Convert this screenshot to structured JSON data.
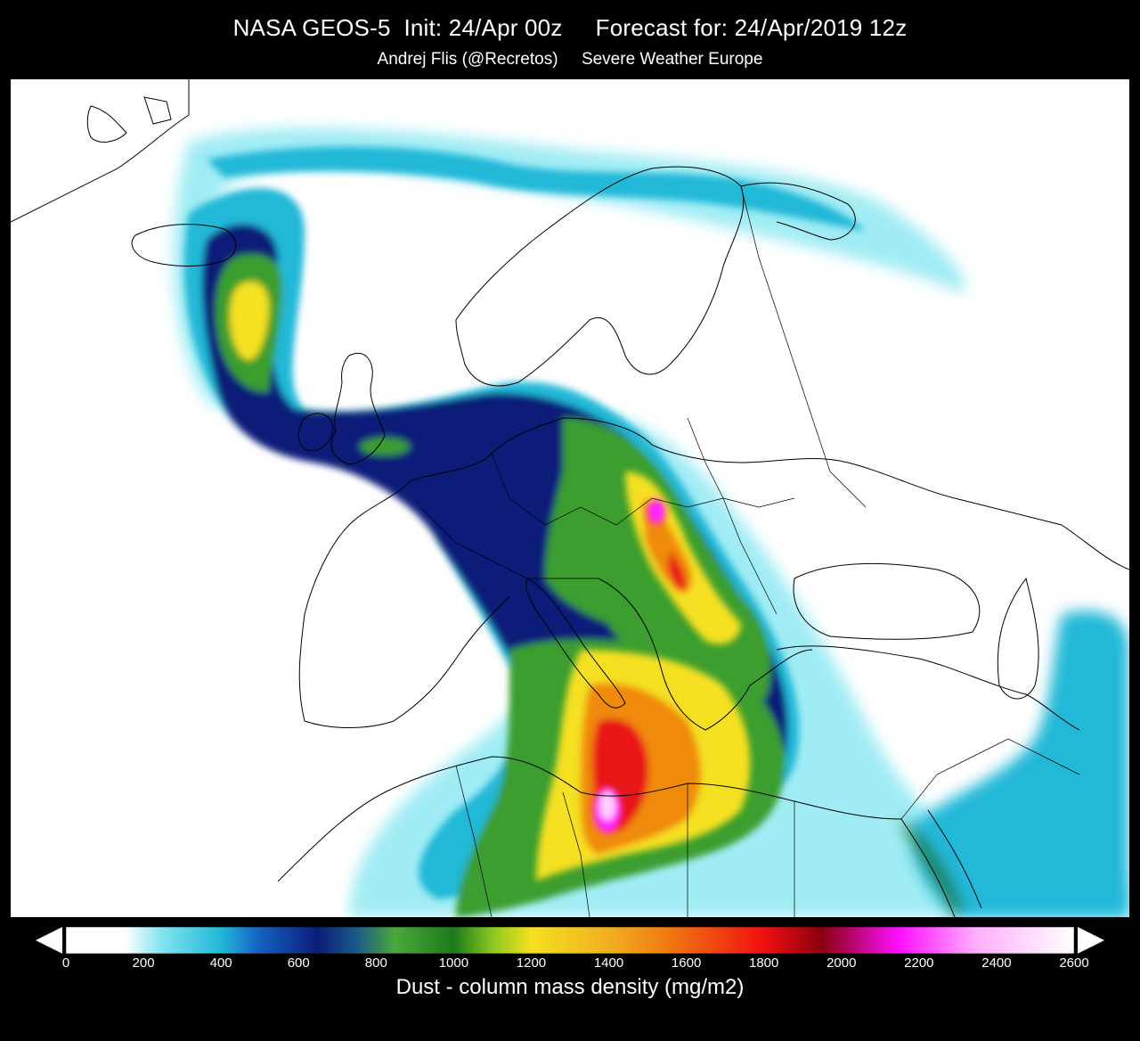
{
  "header": {
    "title": "NASA GEOS-5  Init: 24/Apr 00z     Forecast for: 24/Apr/2019 12z",
    "subtitle": "Andrej Flis (@Recretos)     Severe Weather Europe"
  },
  "colorbar": {
    "label": "Dust - column mass density (mg/m2)",
    "ticks": [
      "0",
      "200",
      "400",
      "600",
      "800",
      "1000",
      "1200",
      "1400",
      "1600",
      "1800",
      "2000",
      "2200",
      "2400",
      "2600"
    ],
    "stops": [
      {
        "value": 0,
        "color": "#ffffff"
      },
      {
        "value": 150,
        "color": "#ffffff"
      },
      {
        "value": 250,
        "color": "#7fe3f0"
      },
      {
        "value": 400,
        "color": "#22b8d8"
      },
      {
        "value": 500,
        "color": "#1560c0"
      },
      {
        "value": 650,
        "color": "#0a1e78"
      },
      {
        "value": 750,
        "color": "#1c5a8a"
      },
      {
        "value": 850,
        "color": "#4aa83a"
      },
      {
        "value": 1000,
        "color": "#1c7a1c"
      },
      {
        "value": 1100,
        "color": "#8ac820"
      },
      {
        "value": 1200,
        "color": "#f5e020"
      },
      {
        "value": 1400,
        "color": "#f0b020"
      },
      {
        "value": 1550,
        "color": "#f07a10"
      },
      {
        "value": 1800,
        "color": "#f01010"
      },
      {
        "value": 1950,
        "color": "#8a0010"
      },
      {
        "value": 2150,
        "color": "#ff10ff"
      },
      {
        "value": 2350,
        "color": "#ffb0ff"
      },
      {
        "value": 2600,
        "color": "#ffffff"
      }
    ]
  },
  "map": {
    "colors": {
      "background": "#ffffff",
      "border": "#000000",
      "light_cyan": "#a0ecf4",
      "cyan": "#22b8d8",
      "blue": "#1560c0",
      "navy": "#0a1e78",
      "green": "#3a9e2e",
      "dark_green": "#1c7a1c",
      "yellow": "#f5e020",
      "orange": "#f08a10",
      "red": "#e81818",
      "magenta": "#ff20ff",
      "pale_pink": "#ffd0ff"
    }
  }
}
